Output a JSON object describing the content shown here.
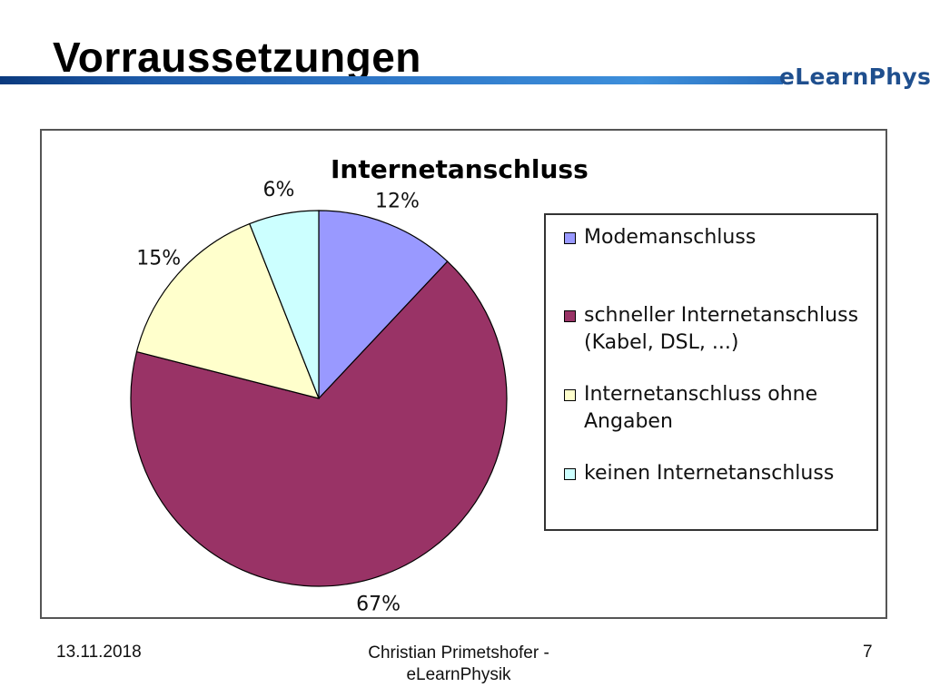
{
  "slide": {
    "title": "Vorraussetzungen",
    "logo": "eLearnPhysik"
  },
  "footer": {
    "date": "13.11.2018",
    "author": "Christian Primetshofer -\neLearnPhysik",
    "page": "7"
  },
  "chart_data": {
    "type": "pie",
    "title": "Internetanschluss",
    "categories": [
      "Modemanschluss",
      "schneller Internetanschluss\n(Kabel, DSL, ...)",
      "Internetanschluss ohne\nAngaben",
      "keinen Internetanschluss"
    ],
    "values": [
      12,
      67,
      15,
      6
    ],
    "labels": [
      "12%",
      "67%",
      "15%",
      "6%"
    ],
    "colors": [
      "#9999ff",
      "#993366",
      "#ffffcc",
      "#ccffff"
    ],
    "legend_position": "right"
  }
}
